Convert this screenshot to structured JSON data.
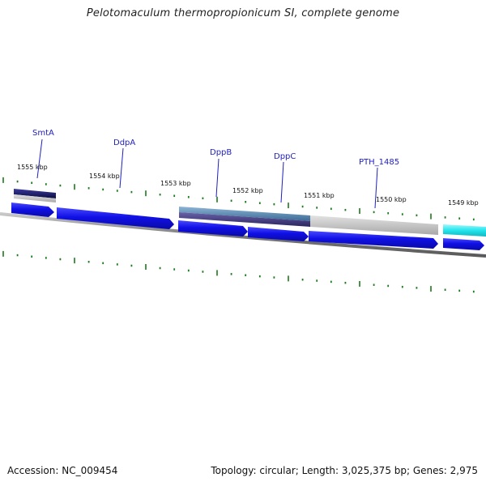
{
  "header": {
    "title": "Pelotomaculum thermopropionicum SI, complete genome"
  },
  "footer": {
    "accession": "Accession: NC_009454",
    "summary": "Topology: circular; Length: 3,025,375 bp; Genes: 2,975"
  },
  "map": {
    "kbp_labels": [
      "1555 kbp",
      "1554 kbp",
      "1553 kbp",
      "1552 kbp",
      "1551 kbp",
      "1550 kbp",
      "1549 kbp"
    ],
    "gene_labels": [
      "SmtA",
      "DdpA",
      "DppB",
      "DppC",
      "PTH_1485"
    ],
    "colors": {
      "gene_arrow": "#1414d8",
      "label": "#1f1fbf",
      "leader_line": "#1f1fbf",
      "backbone": "#8a8a8a",
      "tick": "#1c7a1c",
      "feature_navy": "#14145a",
      "feature_steel": "#4f7fa8",
      "feature_purple": "#3c3478",
      "feature_gray": "#bdbdbd",
      "feature_cyan": "#24e6ee"
    }
  }
}
